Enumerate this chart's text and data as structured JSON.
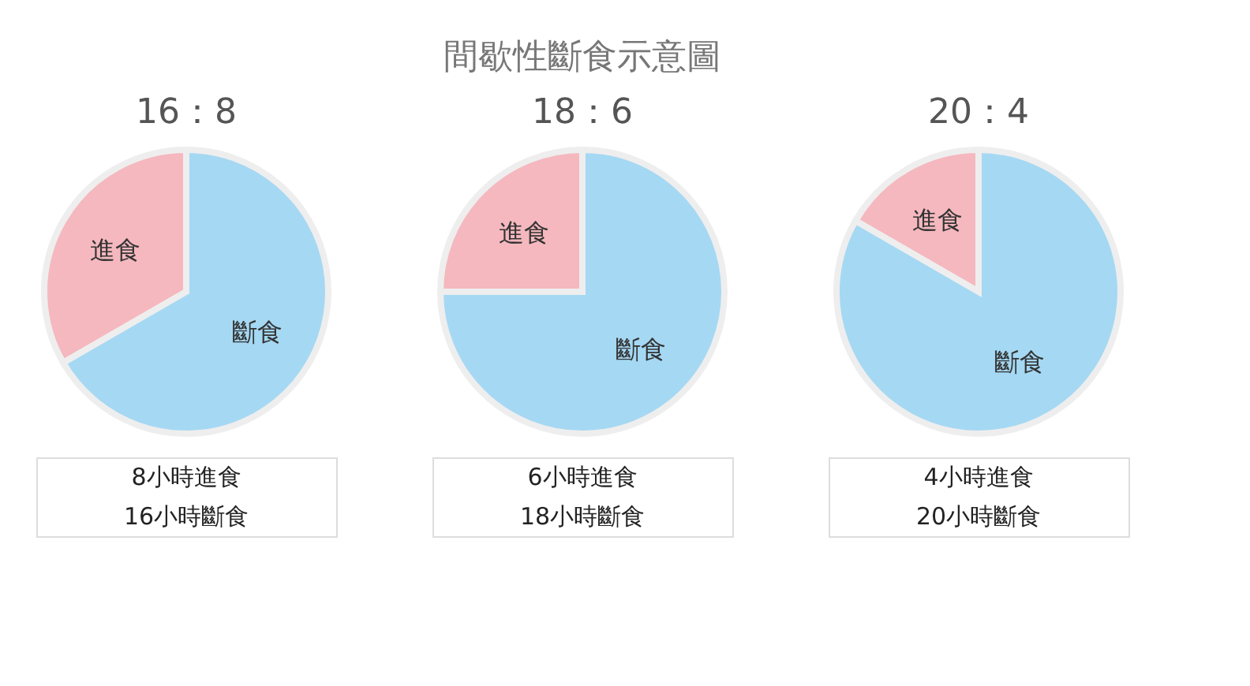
{
  "chart_data": [
    {
      "type": "other",
      "title": "間歇性斷食示意圖"
    },
    {
      "type": "pie",
      "title": "16：8",
      "categories": [
        "進食",
        "斷食"
      ],
      "values": [
        33.33,
        66.67
      ],
      "colors": [
        "#f5b8bf",
        "#a5d8f3"
      ],
      "annotations": [
        "8小時進食",
        "16小時斷食"
      ]
    },
    {
      "type": "pie",
      "title": "18：6",
      "categories": [
        "進食",
        "斷食"
      ],
      "values": [
        25,
        75
      ],
      "colors": [
        "#f5b8bf",
        "#a5d8f3"
      ],
      "annotations": [
        "6小時進食",
        "18小時斷食"
      ]
    },
    {
      "type": "pie",
      "title": "20：4",
      "categories": [
        "進食",
        "斷食"
      ],
      "values": [
        16.67,
        83.33
      ],
      "colors": [
        "#f5b8bf",
        "#a5d8f3"
      ],
      "annotations": [
        "4小時進食",
        "20小時斷食"
      ]
    }
  ]
}
